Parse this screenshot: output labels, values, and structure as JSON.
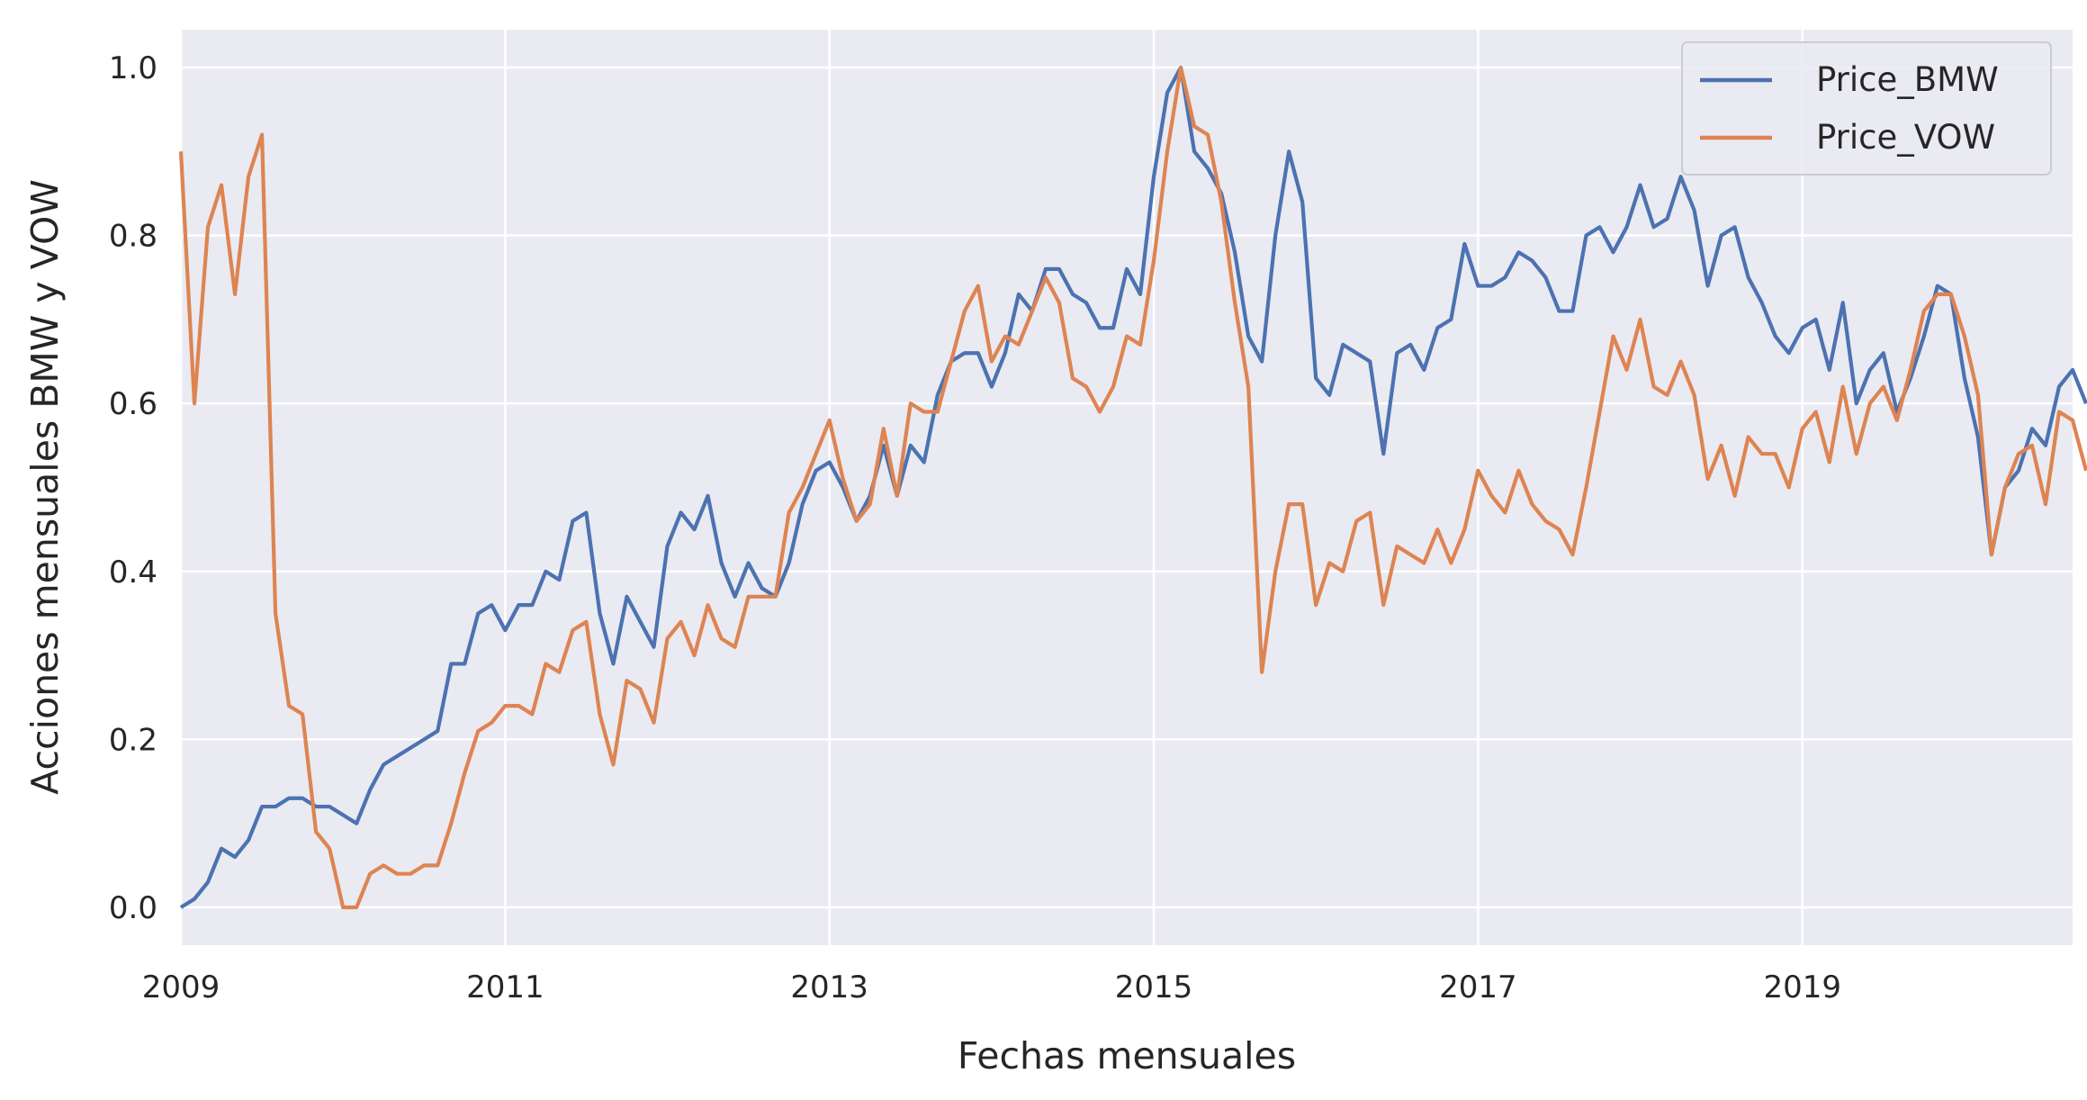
{
  "chart_data": {
    "type": "line",
    "title": "",
    "xlabel": "Fechas mensuales",
    "ylabel": "Acciones mensuales BMW y VOW",
    "x_start": "2009-01",
    "x_end": "2020-09",
    "xlim": [
      "2009-01",
      "2020-09"
    ],
    "ylim": [
      -0.045,
      1.045
    ],
    "xticks": [
      "2009",
      "2011",
      "2013",
      "2015",
      "2017",
      "2019"
    ],
    "yticks": [
      "0.0",
      "0.2",
      "0.4",
      "0.6",
      "0.8",
      "1.0"
    ],
    "grid": true,
    "legend_position": "top-right",
    "colors": {
      "plot_background": "#eaeaf2",
      "grid": "#ffffff",
      "text": "#262626"
    },
    "series": [
      {
        "name": "Price_BMW",
        "color": "#4c72b0",
        "values": [
          0.0,
          0.01,
          0.03,
          0.07,
          0.06,
          0.08,
          0.12,
          0.12,
          0.13,
          0.13,
          0.12,
          0.12,
          0.11,
          0.1,
          0.14,
          0.17,
          0.18,
          0.19,
          0.2,
          0.21,
          0.29,
          0.29,
          0.35,
          0.36,
          0.33,
          0.36,
          0.36,
          0.4,
          0.39,
          0.46,
          0.47,
          0.35,
          0.29,
          0.37,
          0.34,
          0.31,
          0.43,
          0.47,
          0.45,
          0.49,
          0.41,
          0.37,
          0.41,
          0.38,
          0.37,
          0.41,
          0.48,
          0.52,
          0.53,
          0.5,
          0.46,
          0.49,
          0.55,
          0.49,
          0.55,
          0.53,
          0.61,
          0.65,
          0.66,
          0.66,
          0.62,
          0.66,
          0.73,
          0.71,
          0.76,
          0.76,
          0.73,
          0.72,
          0.69,
          0.69,
          0.76,
          0.73,
          0.87,
          0.97,
          1.0,
          0.9,
          0.88,
          0.85,
          0.78,
          0.68,
          0.65,
          0.8,
          0.9,
          0.84,
          0.63,
          0.61,
          0.67,
          0.66,
          0.65,
          0.54,
          0.66,
          0.67,
          0.64,
          0.69,
          0.7,
          0.79,
          0.74,
          0.74,
          0.75,
          0.78,
          0.77,
          0.75,
          0.71,
          0.71,
          0.8,
          0.81,
          0.78,
          0.81,
          0.86,
          0.81,
          0.82,
          0.87,
          0.83,
          0.74,
          0.8,
          0.81,
          0.75,
          0.72,
          0.68,
          0.66,
          0.69,
          0.7,
          0.64,
          0.72,
          0.6,
          0.64,
          0.66,
          0.59,
          0.63,
          0.68,
          0.74,
          0.73,
          0.63,
          0.56,
          0.42,
          0.5,
          0.52,
          0.57,
          0.55,
          0.62,
          0.64,
          0.6
        ]
      },
      {
        "name": "Price_VOW",
        "color": "#dd8452",
        "values": [
          0.9,
          0.6,
          0.81,
          0.86,
          0.73,
          0.87,
          0.92,
          0.35,
          0.24,
          0.23,
          0.09,
          0.07,
          0.0,
          0.0,
          0.04,
          0.05,
          0.04,
          0.04,
          0.05,
          0.05,
          0.1,
          0.16,
          0.21,
          0.22,
          0.24,
          0.24,
          0.23,
          0.29,
          0.28,
          0.33,
          0.34,
          0.23,
          0.17,
          0.27,
          0.26,
          0.22,
          0.32,
          0.34,
          0.3,
          0.36,
          0.32,
          0.31,
          0.37,
          0.37,
          0.37,
          0.47,
          0.5,
          0.54,
          0.58,
          0.51,
          0.46,
          0.48,
          0.57,
          0.49,
          0.6,
          0.59,
          0.59,
          0.65,
          0.71,
          0.74,
          0.65,
          0.68,
          0.67,
          0.71,
          0.75,
          0.72,
          0.63,
          0.62,
          0.59,
          0.62,
          0.68,
          0.67,
          0.77,
          0.9,
          1.0,
          0.93,
          0.92,
          0.84,
          0.72,
          0.62,
          0.28,
          0.4,
          0.48,
          0.48,
          0.36,
          0.41,
          0.4,
          0.46,
          0.47,
          0.36,
          0.43,
          0.42,
          0.41,
          0.45,
          0.41,
          0.45,
          0.52,
          0.49,
          0.47,
          0.52,
          0.48,
          0.46,
          0.45,
          0.42,
          0.5,
          0.59,
          0.68,
          0.64,
          0.7,
          0.62,
          0.61,
          0.65,
          0.61,
          0.51,
          0.55,
          0.49,
          0.56,
          0.54,
          0.54,
          0.5,
          0.57,
          0.59,
          0.53,
          0.62,
          0.54,
          0.6,
          0.62,
          0.58,
          0.64,
          0.71,
          0.73,
          0.73,
          0.68,
          0.61,
          0.42,
          0.5,
          0.54,
          0.55,
          0.48,
          0.59,
          0.58,
          0.52
        ]
      }
    ]
  }
}
